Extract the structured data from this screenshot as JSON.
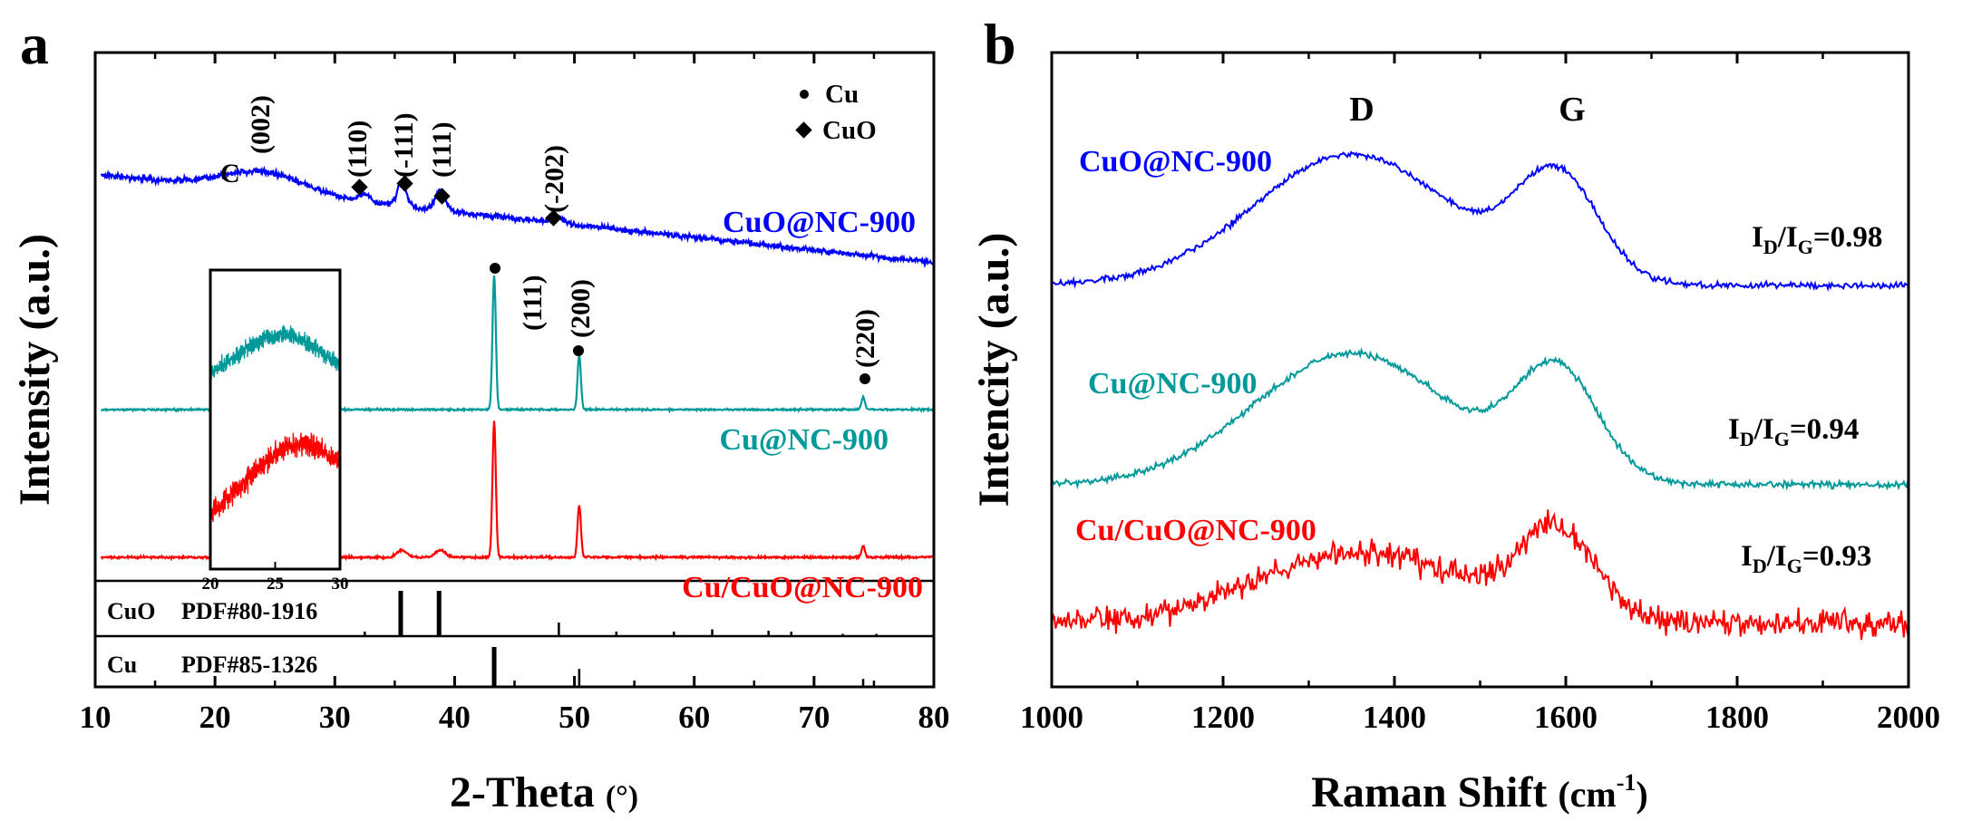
{
  "chart_data": [
    {
      "panel": "a",
      "type": "line",
      "xlabel": "2-Theta",
      "xlabel_unit": "(°)",
      "ylabel": "Intensity (a.u.)",
      "xlim": [
        10,
        80
      ],
      "xticks": [
        "10",
        "20",
        "30",
        "40",
        "50",
        "60",
        "70",
        "80"
      ],
      "legend": [
        {
          "marker": "●",
          "label": "Cu"
        },
        {
          "marker": "◆",
          "label": "CuO"
        }
      ],
      "series": [
        {
          "name": "CuO@NC-900",
          "color": "#0000ff",
          "peaks_2theta": [
            24.0,
            32.5,
            35.6,
            38.8,
            48.7
          ],
          "peak_labels": [
            "(002)",
            "(110)",
            "(-111)",
            "(111)",
            "(-202)"
          ]
        },
        {
          "name": "Cu@NC-900",
          "color": "#009999",
          "peaks_2theta": [
            43.3,
            50.4,
            74.1
          ],
          "peak_labels": [
            "(111)",
            "(200)",
            "(220)"
          ]
        },
        {
          "name": "Cu/CuO@NC-900",
          "color": "#ff0000",
          "peaks_2theta": [
            35.6,
            38.8,
            43.3,
            50.4,
            74.1
          ]
        }
      ],
      "annotations": {
        "carbon_label": "C"
      },
      "inset": {
        "xlim": [
          20,
          30
        ],
        "xticks": [
          "20",
          "25",
          "30"
        ]
      },
      "reference_patterns": [
        {
          "name": "CuO",
          "label": "PDF#80-1916",
          "lines": [
            {
              "x": 32.5,
              "h": 0.1
            },
            {
              "x": 35.5,
              "h": 1.0
            },
            {
              "x": 38.7,
              "h": 1.0
            },
            {
              "x": 48.7,
              "h": 0.3
            },
            {
              "x": 53.5,
              "h": 0.1
            },
            {
              "x": 58.3,
              "h": 0.1
            },
            {
              "x": 61.5,
              "h": 0.15
            },
            {
              "x": 66.2,
              "h": 0.12
            },
            {
              "x": 68.1,
              "h": 0.1
            },
            {
              "x": 72.4,
              "h": 0.05
            },
            {
              "x": 75.2,
              "h": 0.05
            }
          ]
        },
        {
          "name": "Cu",
          "label": "PDF#85-1326",
          "lines": [
            {
              "x": 43.3,
              "h": 1.0
            },
            {
              "x": 50.4,
              "h": 0.45
            },
            {
              "x": 74.1,
              "h": 0.2
            }
          ]
        }
      ]
    },
    {
      "panel": "b",
      "type": "line",
      "xlabel": "Raman Shift",
      "xlabel_unit": "(cm-1)",
      "ylabel": "Intencity (a.u.)",
      "xlim": [
        1000,
        2000
      ],
      "xticks": [
        "1000",
        "1200",
        "1400",
        "1600",
        "1800",
        "2000"
      ],
      "bands": [
        {
          "label": "D",
          "x": 1350
        },
        {
          "label": "G",
          "x": 1590
        }
      ],
      "series": [
        {
          "name": "CuO@NC-900",
          "color": "#0000ff",
          "ratio_value": "=0.98"
        },
        {
          "name": "Cu@NC-900",
          "color": "#009999",
          "ratio_value": "=0.94"
        },
        {
          "name": "Cu/CuO@NC-900",
          "color": "#ff0000",
          "ratio_value": "=0.93"
        }
      ]
    }
  ],
  "labels": {
    "panel_a": "a",
    "panel_b": "b",
    "a_xlabel": "2-Theta ",
    "a_xunit": "(°)",
    "a_ylabel": "Intensity (a.u.)",
    "a_c": "C",
    "a_peak_002": "(002)",
    "a_peak_110": "(110)",
    "a_peak_m111": "(-111)",
    "a_peak_111": "(111)",
    "a_peak_m202": "(-202)",
    "a_cu_111": "(111)",
    "a_cu_200": "(200)",
    "a_cu_220": "(220)",
    "a_legend_cu": "Cu",
    "a_legend_cuo": "CuO",
    "a_s1": "CuO@NC-900",
    "a_s2": "Cu@NC-900",
    "a_s3": "Cu/CuO@NC-900",
    "a_ref1_name": "CuO",
    "a_ref1_pdf": "PDF#80-1916",
    "a_ref2_name": "Cu",
    "a_ref2_pdf": "PDF#85-1326",
    "b_xlabel": "Raman Shift ",
    "b_xunit_open": "(cm",
    "b_xunit_sup": "-1",
    "b_xunit_close": ")",
    "b_ylabel": "Intencity (a.u.)",
    "b_D": "D",
    "b_G": "G",
    "b_s1": "CuO@NC-900",
    "b_s2": "Cu@NC-900",
    "b_s3": "Cu/CuO@NC-900",
    "ratio_I": "I",
    "ratio_D": "D",
    "ratio_slash": "/I",
    "ratio_G": "G",
    "r1": "=0.98",
    "r2": "=0.94",
    "r3": "=0.93"
  }
}
